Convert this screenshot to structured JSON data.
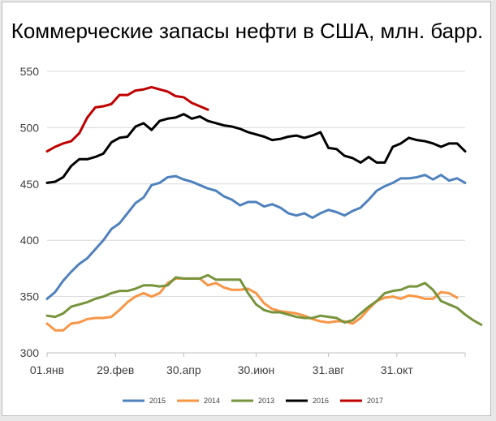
{
  "chart_data": {
    "type": "line",
    "title": "Коммерческие запасы нефти в США, млн. барр.",
    "xlabel": "",
    "ylabel": "",
    "ylim": [
      300,
      550
    ],
    "yticks": [
      300,
      350,
      400,
      450,
      500,
      550
    ],
    "xlim": [
      0,
      52
    ],
    "xticks": [
      {
        "x": 0,
        "label": "01.янв"
      },
      {
        "x": 8.5,
        "label": "29.фев"
      },
      {
        "x": 17,
        "label": "30.апр"
      },
      {
        "x": 26,
        "label": "30.июн"
      },
      {
        "x": 35,
        "label": "31.авг"
      },
      {
        "x": 43.5,
        "label": "31.окт"
      },
      {
        "x": 52,
        "label": ""
      }
    ],
    "grid": "horizontal",
    "legend_position": "bottom",
    "series": [
      {
        "name": "2015",
        "color": "#4f81bd",
        "values": [
          348,
          354,
          364,
          372,
          379,
          384,
          392,
          400,
          410,
          415,
          424,
          433,
          438,
          449,
          451,
          456,
          457,
          454,
          452,
          449,
          446,
          444,
          439,
          436,
          431,
          434,
          434,
          430,
          432,
          429,
          424,
          422,
          424,
          420,
          424,
          427,
          425,
          422,
          426,
          429,
          436,
          444,
          448,
          451,
          455,
          455,
          456,
          458,
          454,
          458,
          453,
          455,
          451
        ]
      },
      {
        "name": "2014",
        "color": "#f79646",
        "values": [
          326,
          320,
          320,
          326,
          327,
          330,
          331,
          331,
          332,
          338,
          345,
          350,
          353,
          350,
          353,
          362,
          366,
          366,
          366,
          366,
          360,
          362,
          358,
          356,
          356,
          357,
          353,
          344,
          339,
          337,
          336,
          335,
          333,
          330,
          328,
          327,
          328,
          328,
          326,
          331,
          339,
          346,
          349,
          350,
          348,
          351,
          350,
          348,
          348,
          354,
          353,
          349
        ]
      },
      {
        "name": "2013",
        "color": "#77933c",
        "values": [
          333,
          332,
          335,
          341,
          343,
          345,
          348,
          350,
          353,
          355,
          355,
          357,
          360,
          360,
          359,
          360,
          367,
          366,
          366,
          366,
          369,
          365,
          365,
          365,
          365,
          353,
          343,
          338,
          336,
          336,
          334,
          332,
          331,
          331,
          333,
          332,
          331,
          327,
          329,
          335,
          341,
          346,
          353,
          355,
          356,
          359,
          359,
          362,
          356,
          346,
          343,
          340,
          334,
          329,
          325
        ]
      },
      {
        "name": "2016",
        "color": "#000000",
        "values": [
          451,
          452,
          456,
          466,
          472,
          472,
          474,
          477,
          487,
          491,
          492,
          501,
          504,
          498,
          506,
          508,
          509,
          512,
          508,
          510,
          506,
          504,
          502,
          501,
          499,
          496,
          494,
          492,
          489,
          490,
          492,
          493,
          491,
          493,
          496,
          482,
          481,
          475,
          473,
          469,
          474,
          469,
          469,
          483,
          486,
          491,
          489,
          488,
          486,
          483,
          486,
          486,
          479
        ]
      },
      {
        "name": "2017",
        "color": "#c00000",
        "values": [
          479,
          483,
          486,
          488,
          495,
          509,
          518,
          519,
          521,
          529,
          529,
          533,
          534,
          536,
          534,
          532,
          528,
          527,
          522,
          519,
          516
        ]
      }
    ]
  }
}
